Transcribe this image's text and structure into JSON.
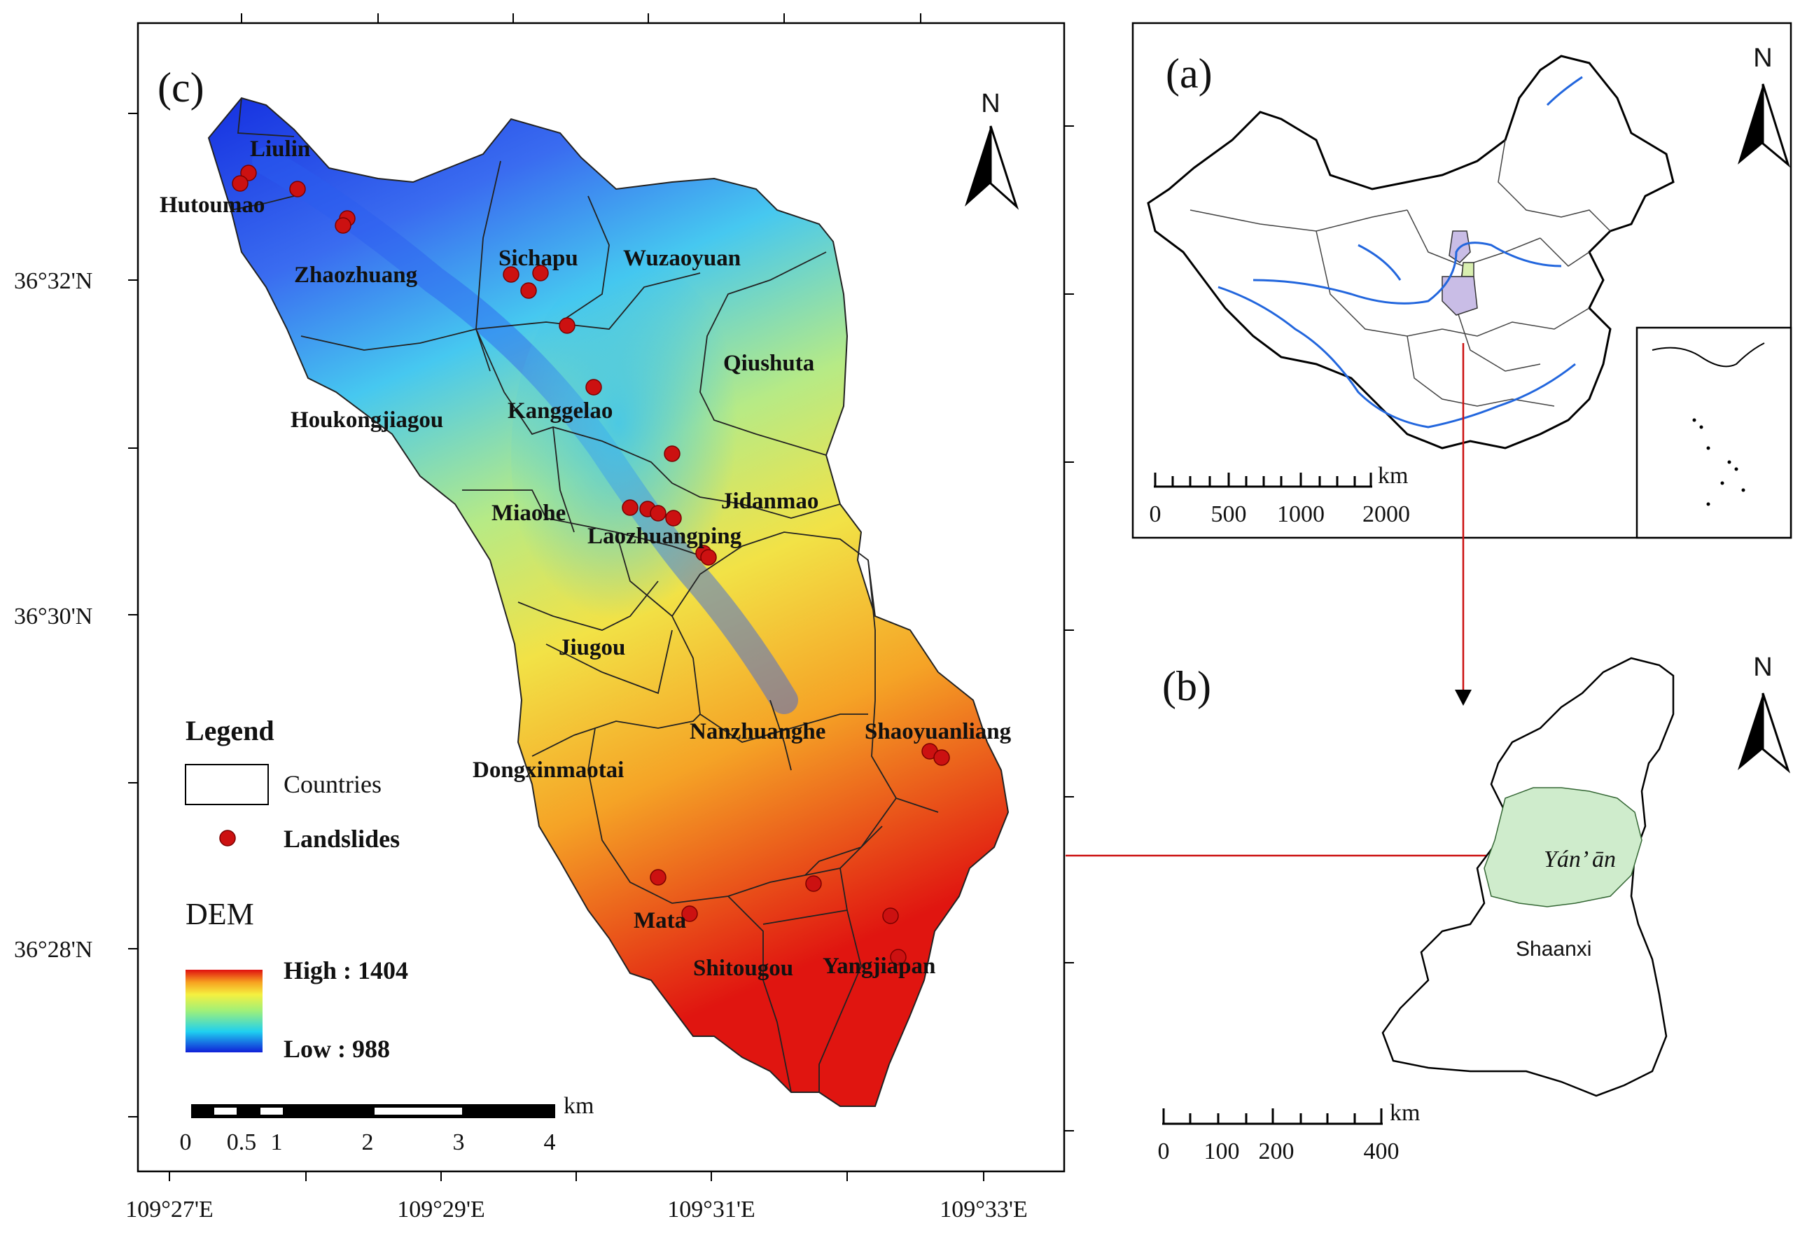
{
  "panel_c": {
    "label": "(c)",
    "north": "N",
    "towns": {
      "liulin": "Liulin",
      "hutoumao": "Hutoumao",
      "zhaozhuang": "Zhaozhuang",
      "sichapu": "Sichapu",
      "wuzaoyuan": "Wuzaoyuan",
      "qiushuta": "Qiushuta",
      "houkongjiagou": "Houkongjiagou",
      "kanggelao": "Kanggelao",
      "miaohe": "Miaohe",
      "jidanmao": "Jidanmao",
      "laozhuangping": "Laozhuangping",
      "jiugou": "Jiugou",
      "nanzhuanghe": "Nanzhuanghe",
      "shaoyuanliang": "Shaoyuanliang",
      "dongxinmaotai": "Dongxinmaotai",
      "mata": "Mata",
      "shitougou": "Shitougou",
      "yangjiapan": "Yangjiapan"
    },
    "lat_ticks": [
      "36°32'N",
      "36°30'N",
      "36°28'N"
    ],
    "lon_ticks": [
      "109°27'E",
      "109°29'E",
      "109°31'E",
      "109°33'E"
    ],
    "legend": {
      "title": "Legend",
      "countries": "Countries",
      "landslides": "Landslides",
      "dem_title": "DEM",
      "high": "High : 1404",
      "low": "Low : 988"
    },
    "scale": {
      "unit": "km",
      "ticks": [
        "0",
        "0.5",
        "1",
        "2",
        "3",
        "4"
      ]
    }
  },
  "panel_a": {
    "label": "(a)",
    "north": "N",
    "scale_unit": "km",
    "scale_ticks": [
      "0",
      "500",
      "1000",
      "2000"
    ]
  },
  "panel_b": {
    "label": "(b)",
    "north": "N",
    "yanan": "Yán’ ān",
    "shaanxi": "Shaanxi",
    "scale_unit": "km",
    "scale_ticks": [
      "0",
      "100",
      "200",
      "400"
    ]
  },
  "colors": {
    "landslide": "#cc1111",
    "connector": "#cc1111",
    "yanan_fill": "#cfeccc",
    "highlight": "#c9bde6",
    "river": "#2266dd"
  }
}
